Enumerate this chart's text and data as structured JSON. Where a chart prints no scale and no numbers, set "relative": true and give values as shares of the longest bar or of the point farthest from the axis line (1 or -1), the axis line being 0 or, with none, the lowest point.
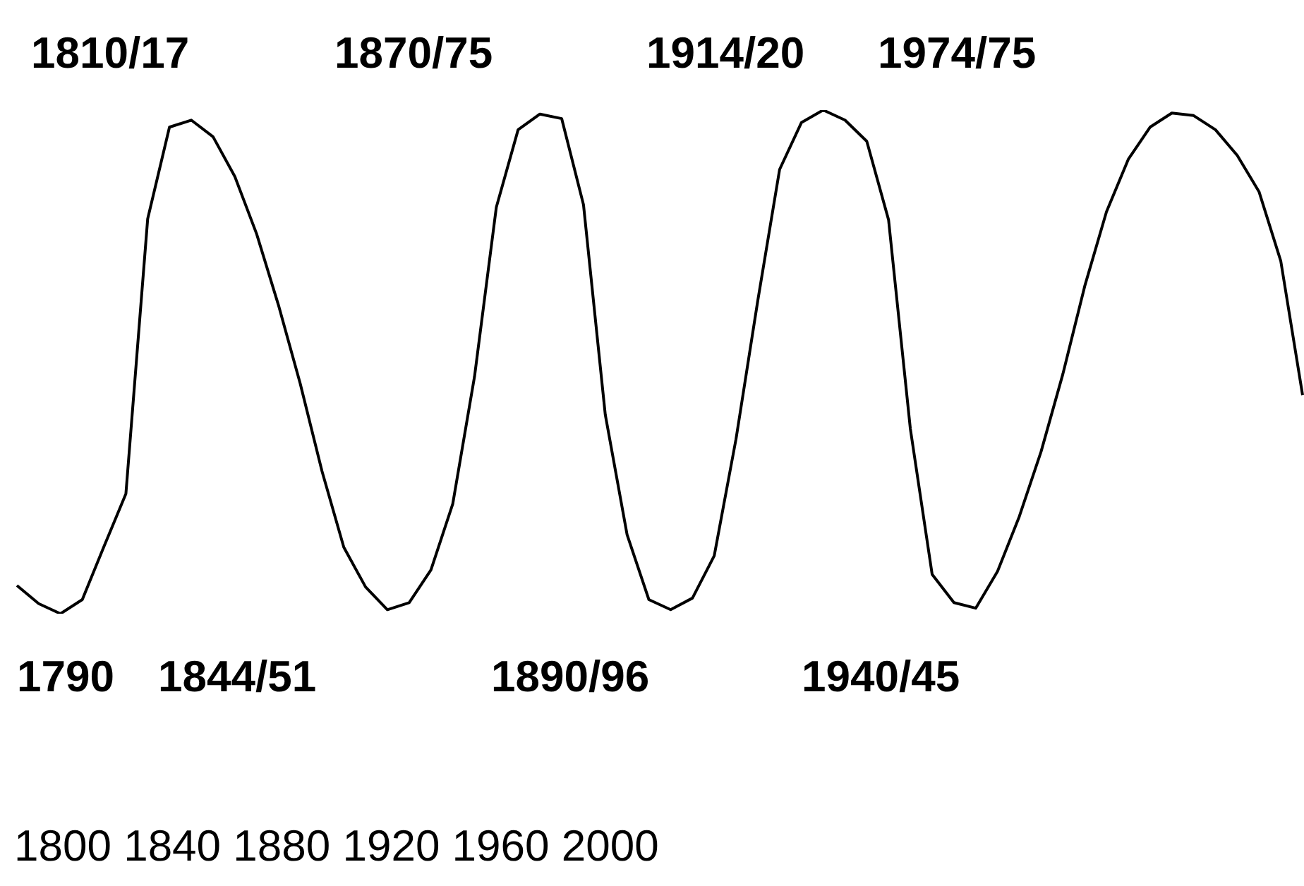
{
  "chart_data": {
    "type": "line",
    "relative": true,
    "categories": [
      null,
      null,
      null,
      null,
      null,
      null,
      null,
      null,
      null,
      null,
      null,
      null,
      null,
      null,
      null,
      null,
      null,
      null,
      null,
      null,
      null,
      null,
      null,
      null,
      null,
      null,
      null,
      null,
      null,
      null,
      null,
      null,
      null,
      null,
      null,
      null,
      null,
      null,
      null,
      null,
      null,
      null,
      null,
      null,
      null,
      null,
      null,
      null,
      null,
      null,
      null,
      null,
      null,
      null,
      null,
      null,
      null,
      null,
      null,
      null
    ],
    "series": [
      {
        "color": "#000000",
        "values": [
          0.056,
          0.02,
          0,
          0.028,
          0.134,
          0.238,
          0.784,
          0.966,
          0.98,
          0.947,
          0.868,
          0.754,
          0.613,
          0.457,
          0.283,
          0.132,
          0.053,
          0.008,
          0.022,
          0.087,
          0.218,
          0.471,
          0.807,
          0.961,
          0.992,
          0.983,
          0.812,
          0.395,
          0.157,
          0.028,
          0.008,
          0.031,
          0.115,
          0.347,
          0.622,
          0.882,
          0.975,
          1,
          0.98,
          0.938,
          0.782,
          0.367,
          0.078,
          0.022,
          0.011,
          0.084,
          0.193,
          0.322,
          0.476,
          0.65,
          0.798,
          0.902,
          0.966,
          0.994,
          0.989,
          0.961,
          0.91,
          0.838,
          0.7,
          0.434
        ]
      }
    ],
    "annotations": [
      "1810/17",
      "1870/75",
      "1914/20",
      "1974/75",
      "1790",
      "1844/51",
      "1890/96",
      "1940/45",
      "1800 1840 1880 1920 1960 2000"
    ],
    "legend": false,
    "marker": "none",
    "line_style": "solid"
  }
}
